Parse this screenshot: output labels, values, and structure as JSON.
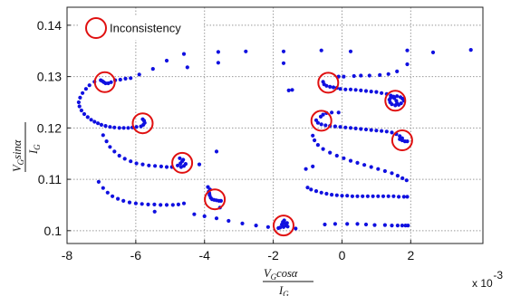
{
  "chart_data": {
    "type": "scatter",
    "title": "",
    "xlabel": {
      "numerator": "V",
      "numerator_sub": "G",
      "numerator_rest": "cosα",
      "denominator": "I",
      "denominator_sub": "G"
    },
    "ylabel": {
      "numerator": "V",
      "numerator_sub": "G",
      "numerator_rest": "sinα",
      "denominator": "I",
      "denominator_sub": "G"
    },
    "x_exponent_label": "x 10",
    "x_exponent_power": "-3",
    "xlim": [
      -8.0,
      4.1
    ],
    "ylim": [
      0.0975,
      0.1435
    ],
    "xticks": [
      -8,
      -6,
      -4,
      -2,
      0,
      2
    ],
    "xtick_labels": [
      "-8",
      "-6",
      "-4",
      "-2",
      "0",
      "2"
    ],
    "yticks": [
      0.1,
      0.11,
      0.12,
      0.13,
      0.14
    ],
    "ytick_labels": [
      "0.1",
      "0.11",
      "0.12",
      "0.13",
      "0.14"
    ],
    "grid": true,
    "legend_position": "top-left",
    "legend": [
      {
        "marker": "red-circle",
        "label": "Inconsistency"
      }
    ],
    "colors": {
      "points": "#1010e0",
      "markers": "#e01010",
      "grid": "#9a9a9a",
      "axes": "#222222"
    },
    "series": [
      {
        "values": [
          [
            -5.1,
            0.1331
          ],
          [
            -4.6,
            0.1344
          ],
          [
            -3.6,
            0.1348
          ],
          [
            -2.8,
            0.1349
          ],
          [
            -1.7,
            0.1349
          ],
          [
            -0.6,
            0.1351
          ],
          [
            2.65,
            0.1347
          ],
          [
            3.75,
            0.1352
          ],
          [
            -3.6,
            0.1327
          ],
          [
            -1.7,
            0.1326
          ],
          [
            -5.5,
            0.1315
          ],
          [
            -4.5,
            0.1318
          ],
          [
            -5.9,
            0.1304
          ],
          [
            -6.15,
            0.1297
          ],
          [
            -6.3,
            0.1296
          ],
          [
            -6.45,
            0.1294
          ],
          [
            -6.6,
            0.1293
          ],
          [
            -6.72,
            0.1289
          ],
          [
            -6.8,
            0.1287
          ],
          [
            -6.88,
            0.1287
          ],
          [
            -6.93,
            0.1289
          ],
          [
            -6.97,
            0.1291
          ],
          [
            -7.02,
            0.1293
          ],
          [
            -7.2,
            0.129
          ],
          [
            -7.35,
            0.1283
          ],
          [
            -7.45,
            0.1276
          ],
          [
            -7.55,
            0.1268
          ],
          [
            -7.62,
            0.1259
          ],
          [
            -7.66,
            0.125
          ],
          [
            -7.64,
            0.1242
          ],
          [
            -7.58,
            0.1234
          ],
          [
            -7.5,
            0.1227
          ],
          [
            -7.4,
            0.1221
          ],
          [
            -7.3,
            0.1216
          ],
          [
            -7.2,
            0.1212
          ],
          [
            -7.1,
            0.1209
          ],
          [
            -7.0,
            0.1206
          ],
          [
            -6.88,
            0.1204
          ],
          [
            -6.75,
            0.1202
          ],
          [
            -6.62,
            0.1201
          ],
          [
            -6.48,
            0.12
          ],
          [
            -6.35,
            0.12
          ],
          [
            -6.22,
            0.12
          ],
          [
            -6.1,
            0.1201
          ],
          [
            -5.98,
            0.1202
          ],
          [
            -5.85,
            0.1203
          ],
          [
            -5.78,
            0.1206
          ],
          [
            -5.74,
            0.121
          ],
          [
            -5.76,
            0.1214
          ],
          [
            -5.8,
            0.1217
          ],
          [
            -6.95,
            0.1186
          ],
          [
            -6.85,
            0.1174
          ],
          [
            -6.75,
            0.1163
          ],
          [
            -6.62,
            0.1154
          ],
          [
            -6.48,
            0.1146
          ],
          [
            -6.32,
            0.114
          ],
          [
            -6.15,
            0.1135
          ],
          [
            -5.98,
            0.1131
          ],
          [
            -5.8,
            0.1129
          ],
          [
            -5.62,
            0.1127
          ],
          [
            -5.44,
            0.1126
          ],
          [
            -5.26,
            0.1125
          ],
          [
            -5.1,
            0.1124
          ],
          [
            -4.95,
            0.1124
          ],
          [
            -4.78,
            0.1127
          ],
          [
            -4.7,
            0.1131
          ],
          [
            -4.65,
            0.1135
          ],
          [
            -4.62,
            0.1138
          ],
          [
            -4.55,
            0.113
          ],
          [
            -4.6,
            0.1126
          ],
          [
            -4.68,
            0.1124
          ],
          [
            -4.72,
            0.1141
          ],
          [
            -4.15,
            0.1129
          ],
          [
            -3.65,
            0.1154
          ],
          [
            -7.08,
            0.1095
          ],
          [
            -6.95,
            0.1083
          ],
          [
            -6.82,
            0.1074
          ],
          [
            -6.68,
            0.1067
          ],
          [
            -6.52,
            0.1062
          ],
          [
            -6.36,
            0.1058
          ],
          [
            -6.18,
            0.1055
          ],
          [
            -6.0,
            0.1053
          ],
          [
            -5.82,
            0.1052
          ],
          [
            -5.64,
            0.1051
          ],
          [
            -5.46,
            0.1051
          ],
          [
            -5.28,
            0.105
          ],
          [
            -5.1,
            0.105
          ],
          [
            -4.92,
            0.105
          ],
          [
            -4.76,
            0.1051
          ],
          [
            -4.6,
            0.1053
          ],
          [
            -3.9,
            0.1085
          ],
          [
            -3.88,
            0.1076
          ],
          [
            -3.85,
            0.1069
          ],
          [
            -3.82,
            0.1064
          ],
          [
            -3.78,
            0.1061
          ],
          [
            -3.72,
            0.106
          ],
          [
            -3.65,
            0.1059
          ],
          [
            -3.58,
            0.1058
          ],
          [
            -3.52,
            0.1058
          ],
          [
            -3.86,
            0.1073
          ],
          [
            -3.84,
            0.108
          ],
          [
            -3.55,
            0.1045
          ],
          [
            -5.45,
            0.1037
          ],
          [
            -4.3,
            0.1032
          ],
          [
            -4.0,
            0.1028
          ],
          [
            -3.65,
            0.1024
          ],
          [
            -3.3,
            0.1019
          ],
          [
            -2.9,
            0.1014
          ],
          [
            -2.5,
            0.101
          ],
          [
            -2.15,
            0.1007
          ],
          [
            -1.85,
            0.1005
          ],
          [
            -1.75,
            0.1012
          ],
          [
            -1.72,
            0.1017
          ],
          [
            -1.68,
            0.102
          ],
          [
            -1.65,
            0.1013
          ],
          [
            -1.62,
            0.101
          ],
          [
            -1.58,
            0.1008
          ],
          [
            -1.7,
            0.1007
          ],
          [
            -1.8,
            0.1006
          ],
          [
            -1.6,
            0.1015
          ],
          [
            -1.35,
            0.1004
          ],
          [
            -1.55,
            0.1273
          ],
          [
            -1.45,
            0.1274
          ],
          [
            -0.55,
            0.129
          ],
          [
            -0.52,
            0.1285
          ],
          [
            -0.45,
            0.1282
          ],
          [
            -0.35,
            0.128
          ],
          [
            -0.25,
            0.1279
          ],
          [
            -0.15,
            0.1278
          ],
          [
            -0.05,
            0.1276
          ],
          [
            0.1,
            0.1275
          ],
          [
            0.25,
            0.1275
          ],
          [
            0.4,
            0.1274
          ],
          [
            0.55,
            0.1273
          ],
          [
            0.7,
            0.1272
          ],
          [
            0.85,
            0.1271
          ],
          [
            1.0,
            0.127
          ],
          [
            1.15,
            0.1268
          ],
          [
            1.3,
            0.1266
          ],
          [
            1.42,
            0.1263
          ],
          [
            1.52,
            0.1258
          ],
          [
            1.58,
            0.1253
          ],
          [
            1.6,
            0.1248
          ],
          [
            -0.1,
            0.13
          ],
          [
            0.05,
            0.13
          ],
          [
            0.35,
            0.1301
          ],
          [
            0.55,
            0.1302
          ],
          [
            0.8,
            0.1302
          ],
          [
            1.1,
            0.1303
          ],
          [
            1.35,
            0.1305
          ],
          [
            1.6,
            0.131
          ],
          [
            1.9,
            0.1324
          ],
          [
            0.25,
            0.1349
          ],
          [
            1.9,
            0.1351
          ],
          [
            1.8,
            0.1253
          ],
          [
            1.72,
            0.1248
          ],
          [
            1.65,
            0.1245
          ],
          [
            1.55,
            0.1244
          ],
          [
            1.45,
            0.1246
          ],
          [
            1.4,
            0.125
          ],
          [
            1.38,
            0.1255
          ],
          [
            1.42,
            0.1259
          ],
          [
            1.5,
            0.1261
          ],
          [
            1.6,
            0.1262
          ],
          [
            1.7,
            0.126
          ],
          [
            1.76,
            0.1257
          ],
          [
            -0.75,
            0.1215
          ],
          [
            -0.7,
            0.121
          ],
          [
            -0.6,
            0.1207
          ],
          [
            -0.48,
            0.1205
          ],
          [
            -0.35,
            0.1204
          ],
          [
            -0.2,
            0.1203
          ],
          [
            -0.05,
            0.1202
          ],
          [
            0.1,
            0.1201
          ],
          [
            0.25,
            0.12
          ],
          [
            0.4,
            0.1199
          ],
          [
            0.55,
            0.1198
          ],
          [
            0.7,
            0.1197
          ],
          [
            0.85,
            0.1196
          ],
          [
            1.0,
            0.1195
          ],
          [
            1.15,
            0.1194
          ],
          [
            1.3,
            0.1193
          ],
          [
            1.45,
            0.1191
          ],
          [
            1.58,
            0.1188
          ],
          [
            1.68,
            0.1184
          ],
          [
            1.75,
            0.118
          ],
          [
            -0.62,
            0.1222
          ],
          [
            -0.55,
            0.1226
          ],
          [
            -0.45,
            0.1229
          ],
          [
            -0.3,
            0.123
          ],
          [
            -0.1,
            0.123
          ],
          [
            1.68,
            0.1178
          ],
          [
            1.75,
            0.1176
          ],
          [
            1.83,
            0.1174
          ],
          [
            1.9,
            0.1174
          ],
          [
            -0.85,
            0.1185
          ],
          [
            -0.8,
            0.1176
          ],
          [
            -0.7,
            0.1167
          ],
          [
            -0.55,
            0.1159
          ],
          [
            -0.35,
            0.1152
          ],
          [
            -0.15,
            0.1146
          ],
          [
            0.05,
            0.1141
          ],
          [
            0.25,
            0.1136
          ],
          [
            0.45,
            0.1132
          ],
          [
            0.65,
            0.1128
          ],
          [
            0.85,
            0.1124
          ],
          [
            1.05,
            0.112
          ],
          [
            1.25,
            0.1116
          ],
          [
            1.45,
            0.1112
          ],
          [
            1.62,
            0.1107
          ],
          [
            1.76,
            0.1102
          ],
          [
            1.88,
            0.1098
          ],
          [
            -0.85,
            0.1125
          ],
          [
            -1.05,
            0.112
          ],
          [
            -1.0,
            0.1084
          ],
          [
            -0.9,
            0.108
          ],
          [
            -0.75,
            0.1077
          ],
          [
            -0.6,
            0.1074
          ],
          [
            -0.45,
            0.1072
          ],
          [
            -0.3,
            0.107
          ],
          [
            -0.15,
            0.1069
          ],
          [
            0.0,
            0.1068
          ],
          [
            0.15,
            0.1068
          ],
          [
            0.3,
            0.1067
          ],
          [
            0.45,
            0.1067
          ],
          [
            0.6,
            0.1067
          ],
          [
            0.75,
            0.1067
          ],
          [
            0.9,
            0.1067
          ],
          [
            1.05,
            0.1067
          ],
          [
            1.2,
            0.1067
          ],
          [
            1.35,
            0.1067
          ],
          [
            1.5,
            0.1067
          ],
          [
            1.65,
            0.1066
          ],
          [
            1.8,
            0.1066
          ],
          [
            1.9,
            0.1066
          ],
          [
            -0.5,
            0.1012
          ],
          [
            -0.2,
            0.1013
          ],
          [
            0.15,
            0.1013
          ],
          [
            0.45,
            0.1013
          ],
          [
            0.7,
            0.1012
          ],
          [
            0.95,
            0.1011
          ],
          [
            1.25,
            0.1011
          ],
          [
            1.45,
            0.101
          ],
          [
            1.62,
            0.101
          ],
          [
            1.75,
            0.101
          ],
          [
            1.85,
            0.101
          ],
          [
            1.92,
            0.101
          ]
        ]
      }
    ],
    "highlight_markers": [
      [
        -6.9,
        0.1289
      ],
      [
        -5.8,
        0.1209
      ],
      [
        -4.65,
        0.1132
      ],
      [
        -3.7,
        0.1061
      ],
      [
        -1.7,
        0.101
      ],
      [
        -0.4,
        0.1288
      ],
      [
        1.55,
        0.1253
      ],
      [
        -0.6,
        0.1214
      ],
      [
        1.75,
        0.1176
      ]
    ]
  }
}
